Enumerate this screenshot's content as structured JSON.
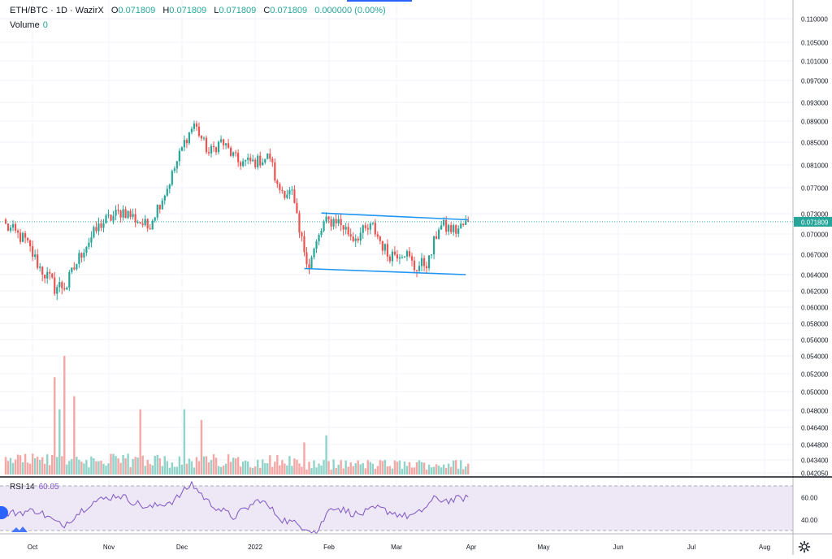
{
  "header": {
    "symbol": "ETH/BTC",
    "interval": "1D",
    "exchange": "WazirX",
    "o_label": "O",
    "o_value": "0.071809",
    "h_label": "H",
    "h_value": "0.071809",
    "l_label": "L",
    "l_value": "0.071809",
    "c_label": "C",
    "c_value": "0.071809",
    "change": "0.000000 (0.00%)",
    "volume_label": "Volume",
    "volume_value": "0"
  },
  "price_axis": {
    "ticks": [
      "0.110000",
      "0.105000",
      "0.101000",
      "0.097000",
      "0.093000",
      "0.089000",
      "0.085000",
      "0.081000",
      "0.077000",
      "0.073000",
      "0.070000",
      "0.067000",
      "0.064000",
      "0.062000",
      "0.060000",
      "0.058000",
      "0.056000",
      "0.054000",
      "0.052000",
      "0.050000",
      "0.048000",
      "0.046400",
      "0.044800",
      "0.043400",
      "0.042050"
    ],
    "last_price": "0.071809"
  },
  "time_axis": {
    "labels": [
      "Oct",
      "Nov",
      "Dec",
      "2022",
      "Feb",
      "Mar",
      "Apr",
      "May",
      "Jun",
      "Jul",
      "Aug"
    ]
  },
  "rsi": {
    "label": "RSI 14",
    "value": "60.05",
    "ticks": [
      "60.00",
      "40.00"
    ],
    "upper": 70,
    "lower": 30
  },
  "colors": {
    "up": "#26a69a",
    "down": "#ef5350",
    "vol_up": "#8fd3c9",
    "vol_down": "#f4a7a5",
    "rsi_line": "#7e57c2",
    "rsi_band": "#ede7f6",
    "trendline": "#2196f3"
  },
  "chart_data": {
    "type": "candlestick",
    "symbol": "ETH/BTC",
    "interval": "1D",
    "overlays": [
      {
        "type": "trendline",
        "from": [
          "2022-01-30",
          0.0731
        ],
        "to": [
          "2022-03-31",
          0.0721
        ]
      },
      {
        "type": "trendline",
        "from": [
          "2022-01-23",
          0.0649
        ],
        "to": [
          "2022-03-30",
          0.064
        ]
      }
    ],
    "anchors": [
      {
        "date": "2021-09-23",
        "close": 0.0712
      },
      {
        "date": "2021-10-01",
        "close": 0.069
      },
      {
        "date": "2021-10-07",
        "close": 0.065
      },
      {
        "date": "2021-10-13",
        "close": 0.0625
      },
      {
        "date": "2021-10-18",
        "close": 0.0627
      },
      {
        "date": "2021-10-25",
        "close": 0.068
      },
      {
        "date": "2021-11-01",
        "close": 0.0715
      },
      {
        "date": "2021-11-10",
        "close": 0.0735
      },
      {
        "date": "2021-11-20",
        "close": 0.071
      },
      {
        "date": "2021-11-28",
        "close": 0.077
      },
      {
        "date": "2021-12-05",
        "close": 0.085
      },
      {
        "date": "2021-12-09",
        "close": 0.0885
      },
      {
        "date": "2021-12-15",
        "close": 0.083
      },
      {
        "date": "2021-12-20",
        "close": 0.0852
      },
      {
        "date": "2021-12-27",
        "close": 0.0815
      },
      {
        "date": "2022-01-03",
        "close": 0.0815
      },
      {
        "date": "2022-01-09",
        "close": 0.0825
      },
      {
        "date": "2022-01-12",
        "close": 0.077
      },
      {
        "date": "2022-01-18",
        "close": 0.076
      },
      {
        "date": "2022-01-21",
        "close": 0.07
      },
      {
        "date": "2022-01-25",
        "close": 0.0655
      },
      {
        "date": "2022-01-31",
        "close": 0.0715
      },
      {
        "date": "2022-02-05",
        "close": 0.0722
      },
      {
        "date": "2022-02-12",
        "close": 0.0695
      },
      {
        "date": "2022-02-20",
        "close": 0.071
      },
      {
        "date": "2022-02-26",
        "close": 0.067
      },
      {
        "date": "2022-03-05",
        "close": 0.0675
      },
      {
        "date": "2022-03-09",
        "close": 0.065
      },
      {
        "date": "2022-03-15",
        "close": 0.066
      },
      {
        "date": "2022-03-19",
        "close": 0.0712
      },
      {
        "date": "2022-03-26",
        "close": 0.0705
      },
      {
        "date": "2022-03-31",
        "close": 0.0718
      }
    ],
    "volume_spikes": [
      {
        "date": "2021-10-13",
        "volume": 0.82
      },
      {
        "date": "2021-10-17",
        "volume": 1.0
      },
      {
        "date": "2021-10-21",
        "volume": 0.66
      },
      {
        "date": "2021-10-15",
        "volume": 0.55
      },
      {
        "date": "2021-12-05",
        "volume": 0.55
      },
      {
        "date": "2021-12-12",
        "volume": 0.46
      },
      {
        "date": "2021-11-17",
        "volume": 0.55
      },
      {
        "date": "2022-01-23",
        "volume": 0.27
      },
      {
        "date": "2022-02-01",
        "volume": 0.33
      }
    ],
    "rsi_anchors": [
      {
        "date": "2021-09-23",
        "value": 45
      },
      {
        "date": "2021-10-06",
        "value": 48
      },
      {
        "date": "2021-10-16",
        "value": 34
      },
      {
        "date": "2021-10-28",
        "value": 55
      },
      {
        "date": "2021-11-08",
        "value": 62
      },
      {
        "date": "2021-11-20",
        "value": 50
      },
      {
        "date": "2021-12-01",
        "value": 57
      },
      {
        "date": "2021-12-08",
        "value": 72
      },
      {
        "date": "2021-12-15",
        "value": 55
      },
      {
        "date": "2021-12-25",
        "value": 42
      },
      {
        "date": "2022-01-05",
        "value": 58
      },
      {
        "date": "2022-01-14",
        "value": 40
      },
      {
        "date": "2022-01-25",
        "value": 32
      },
      {
        "date": "2022-01-28",
        "value": 28
      },
      {
        "date": "2022-02-03",
        "value": 52
      },
      {
        "date": "2022-02-14",
        "value": 44
      },
      {
        "date": "2022-02-22",
        "value": 50
      },
      {
        "date": "2022-03-05",
        "value": 43
      },
      {
        "date": "2022-03-10",
        "value": 44
      },
      {
        "date": "2022-03-17",
        "value": 58
      },
      {
        "date": "2022-03-24",
        "value": 57
      },
      {
        "date": "2022-03-31",
        "value": 60.05
      }
    ]
  }
}
